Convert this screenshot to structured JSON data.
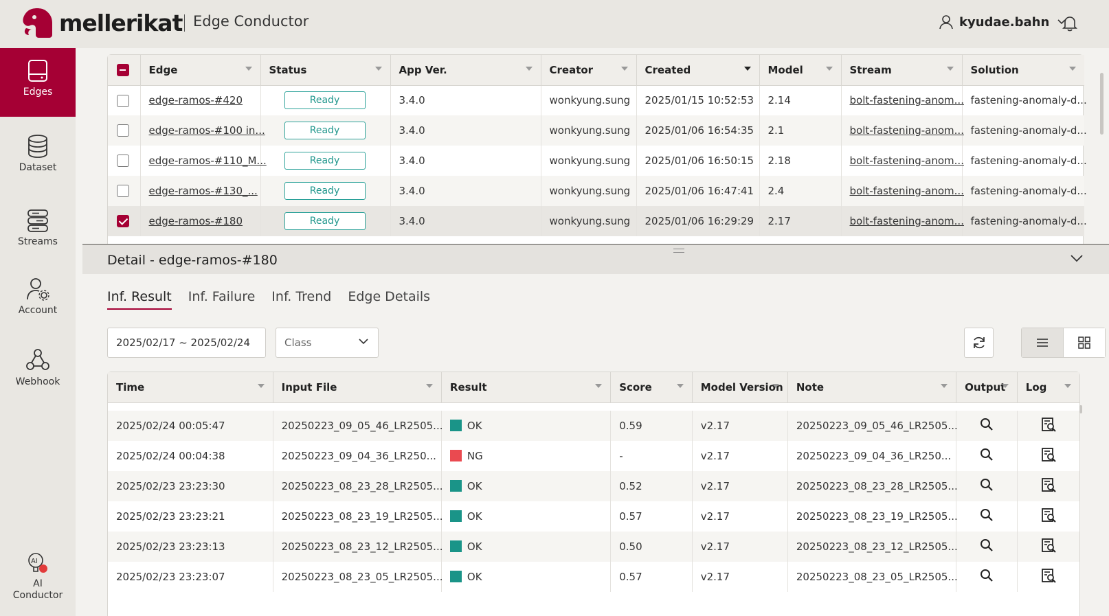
{
  "brand": {
    "logo_text": "mellerikat",
    "app_name": "Edge Conductor",
    "accent": "#a50034"
  },
  "user": {
    "name": "kyudae.bahn"
  },
  "sidebar": {
    "items": [
      {
        "label": "Edges",
        "icon": "edge-device-icon",
        "active": true
      },
      {
        "label": "Dataset",
        "icon": "database-icon",
        "active": false
      },
      {
        "label": "Streams",
        "icon": "streams-icon",
        "active": false
      },
      {
        "label": "Account",
        "icon": "account-settings-icon",
        "active": false
      },
      {
        "label": "Webhook",
        "icon": "webhook-icon",
        "active": false
      },
      {
        "label": "AI Conductor",
        "icon": "ai-conductor-icon",
        "active": false
      }
    ]
  },
  "edges_table": {
    "columns": [
      "Edge",
      "Status",
      "App Ver.",
      "Creator",
      "Created",
      "Model",
      "Stream",
      "Solution"
    ],
    "rows": [
      {
        "edge": "edge-ramos-#420",
        "status": "Ready",
        "app_ver": "3.4.0",
        "creator": "wonkyung.sung",
        "created": "2025/01/15 10:52:53",
        "model": "2.14",
        "stream": "bolt-fastening-anom...",
        "solution": "fastening-anomaly-d..."
      },
      {
        "edge": "edge-ramos-#100 in...",
        "status": "Ready",
        "app_ver": "3.4.0",
        "creator": "wonkyung.sung",
        "created": "2025/01/06 16:54:35",
        "model": "2.1",
        "stream": "bolt-fastening-anom...",
        "solution": "fastening-anomaly-d..."
      },
      {
        "edge": "edge-ramos-#110_M...",
        "status": "Ready",
        "app_ver": "3.4.0",
        "creator": "wonkyung.sung",
        "created": "2025/01/06 16:50:15",
        "model": "2.18",
        "stream": "bolt-fastening-anom...",
        "solution": "fastening-anomaly-d..."
      },
      {
        "edge": "edge-ramos-#130_...",
        "status": "Ready",
        "app_ver": "3.4.0",
        "creator": "wonkyung.sung",
        "created": "2025/01/06 16:47:41",
        "model": "2.4",
        "stream": "bolt-fastening-anom...",
        "solution": "fastening-anomaly-d..."
      },
      {
        "edge": "edge-ramos-#180",
        "status": "Ready",
        "app_ver": "3.4.0",
        "creator": "wonkyung.sung",
        "created": "2025/01/06 16:29:29",
        "model": "2.17",
        "stream": "bolt-fastening-anom...",
        "solution": "fastening-anomaly-d..."
      }
    ]
  },
  "detail": {
    "title": "Detail - edge-ramos-#180",
    "tabs": [
      "Inf. Result",
      "Inf. Failure",
      "Inf. Trend",
      "Edge Details"
    ],
    "date_range": "2025/02/17 ~ 2025/02/24",
    "class_placeholder": "Class",
    "columns": [
      "Time",
      "Input File",
      "Result",
      "Score",
      "Model Version",
      "Note",
      "Output",
      "Log"
    ],
    "rows": [
      {
        "time": "2025/02/24 00:05:47",
        "input": "20250223_09_05_46_LR2505...",
        "result": "OK",
        "result_color": "#1a9488",
        "score": "0.59",
        "model": "v2.17",
        "note": "20250223_09_05_46_LR2505..."
      },
      {
        "time": "2025/02/24 00:04:38",
        "input": "20250223_09_04_36_LR250...",
        "result": "NG",
        "result_color": "#ea4a50",
        "score": "-",
        "model": "v2.17",
        "note": "20250223_09_04_36_LR250..."
      },
      {
        "time": "2025/02/23 23:23:30",
        "input": "20250223_08_23_28_LR2505...",
        "result": "OK",
        "result_color": "#1a9488",
        "score": "0.52",
        "model": "v2.17",
        "note": "20250223_08_23_28_LR2505..."
      },
      {
        "time": "2025/02/23 23:23:21",
        "input": "20250223_08_23_19_LR2505...",
        "result": "OK",
        "result_color": "#1a9488",
        "score": "0.57",
        "model": "v2.17",
        "note": "20250223_08_23_19_LR2505..."
      },
      {
        "time": "2025/02/23 23:23:13",
        "input": "20250223_08_23_12_LR2505...",
        "result": "OK",
        "result_color": "#1a9488",
        "score": "0.50",
        "model": "v2.17",
        "note": "20250223_08_23_12_LR2505..."
      },
      {
        "time": "2025/02/23 23:23:07",
        "input": "20250223_08_23_05_LR2505...",
        "result": "OK",
        "result_color": "#1a9488",
        "score": "0.57",
        "model": "v2.17",
        "note": "20250223_08_23_05_LR2505..."
      }
    ]
  }
}
